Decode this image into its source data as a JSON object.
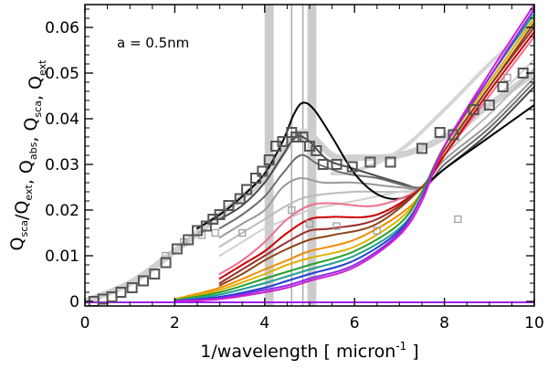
{
  "chart_data": {
    "type": "line",
    "title": "",
    "annotation": "a = 0.5nm",
    "xlabel": "1/wavelength [ micron",
    "xlabel_sup": "-1",
    "xlabel_end": " ]",
    "ylabel_parts": [
      {
        "base": "Q",
        "sub": "sca"
      },
      {
        "text": "/"
      },
      {
        "base": "Q",
        "sub": "ext"
      },
      {
        "text": ",  "
      },
      {
        "base": "Q",
        "sub": "abs"
      },
      {
        "text": ",  "
      },
      {
        "base": "Q",
        "sub": "sca"
      },
      {
        "text": ",  "
      },
      {
        "base": "Q",
        "sub": "ext"
      }
    ],
    "xlim": [
      0,
      10
    ],
    "ylim": [
      -0.001,
      0.065
    ],
    "xticks": [
      0,
      2,
      4,
      6,
      8,
      10
    ],
    "xtick_labels": [
      "0",
      "2",
      "4",
      "6",
      "8",
      "10"
    ],
    "yticks": [
      0,
      0.01,
      0.02,
      0.03,
      0.04,
      0.05,
      0.06
    ],
    "ytick_labels": [
      "0",
      "0.01",
      "0.02",
      "0.03",
      "0.04",
      "0.05",
      "0.06"
    ],
    "vertical_bands": [
      {
        "x": 4.1,
        "width": 0.2,
        "color": "#cccccc"
      },
      {
        "x": 5.05,
        "width": 0.2,
        "color": "#cccccc"
      }
    ],
    "vertical_lines": [
      {
        "x": 4.6,
        "color": "#aaaaaa"
      },
      {
        "x": 4.85,
        "color": "#aaaaaa"
      }
    ],
    "series": [
      {
        "name": "ext-fit-band",
        "color": "#d0d0d0",
        "width": 7,
        "points": [
          [
            0,
            0.0
          ],
          [
            1,
            0.004
          ],
          [
            2,
            0.011
          ],
          [
            3,
            0.019
          ],
          [
            4,
            0.027
          ],
          [
            4.8,
            0.037
          ],
          [
            5.5,
            0.032
          ],
          [
            6,
            0.0315
          ],
          [
            7,
            0.032
          ],
          [
            8,
            0.036
          ],
          [
            9,
            0.043
          ],
          [
            10,
            0.05
          ]
        ]
      },
      {
        "name": "upper-fit",
        "color": "#d6d6d6",
        "width": 4,
        "points": [
          [
            5.5,
            0.028
          ],
          [
            6,
            0.0285
          ],
          [
            7,
            0.033
          ],
          [
            8,
            0.042
          ],
          [
            9,
            0.052
          ],
          [
            10,
            0.061
          ]
        ]
      },
      {
        "name": "gray-1",
        "color": "#4a4a4a",
        "width": 2,
        "points": [
          [
            3,
            0.018
          ],
          [
            3.5,
            0.021
          ],
          [
            4,
            0.026
          ],
          [
            4.4,
            0.032
          ],
          [
            4.7,
            0.036
          ],
          [
            5,
            0.035
          ],
          [
            5.4,
            0.031
          ],
          [
            6,
            0.029
          ],
          [
            7,
            0.026
          ],
          [
            7.5,
            0.025
          ],
          [
            8,
            0.029
          ],
          [
            9,
            0.037
          ],
          [
            10,
            0.047
          ]
        ]
      },
      {
        "name": "gray-2",
        "color": "#6e6e6e",
        "width": 2,
        "points": [
          [
            3,
            0.016
          ],
          [
            3.5,
            0.019
          ],
          [
            4,
            0.023
          ],
          [
            4.4,
            0.028
          ],
          [
            4.8,
            0.032
          ],
          [
            5.2,
            0.03
          ],
          [
            5.8,
            0.028
          ],
          [
            6.5,
            0.027
          ],
          [
            7.5,
            0.025
          ],
          [
            8,
            0.03
          ],
          [
            9,
            0.038
          ],
          [
            10,
            0.048
          ]
        ]
      },
      {
        "name": "gray-3",
        "color": "#999999",
        "width": 2,
        "points": [
          [
            3,
            0.014
          ],
          [
            3.5,
            0.017
          ],
          [
            4,
            0.02
          ],
          [
            4.4,
            0.025
          ],
          [
            4.8,
            0.027
          ],
          [
            5.3,
            0.026
          ],
          [
            6,
            0.026
          ],
          [
            7,
            0.025
          ],
          [
            7.5,
            0.025
          ],
          [
            8,
            0.031
          ],
          [
            9,
            0.039
          ],
          [
            10,
            0.049
          ]
        ]
      },
      {
        "name": "gray-4",
        "color": "#bbbbbb",
        "width": 2,
        "points": [
          [
            3,
            0.012
          ],
          [
            3.5,
            0.015
          ],
          [
            4,
            0.018
          ],
          [
            4.5,
            0.021
          ],
          [
            5,
            0.023
          ],
          [
            6,
            0.024
          ],
          [
            7,
            0.024
          ],
          [
            7.5,
            0.025
          ],
          [
            8,
            0.032
          ],
          [
            9,
            0.041
          ],
          [
            10,
            0.051
          ]
        ]
      },
      {
        "name": "gray-5",
        "color": "#d0d0d0",
        "width": 2,
        "points": [
          [
            3,
            0.01
          ],
          [
            3.5,
            0.013
          ],
          [
            4,
            0.016
          ],
          [
            4.5,
            0.018
          ],
          [
            5,
            0.02
          ],
          [
            6,
            0.022
          ],
          [
            7,
            0.024
          ],
          [
            7.5,
            0.025
          ],
          [
            8,
            0.033
          ],
          [
            9,
            0.043
          ],
          [
            10,
            0.053
          ]
        ]
      },
      {
        "name": "black",
        "color": "#000000",
        "width": 2,
        "points": [
          [
            2.5,
            0.016
          ],
          [
            3,
            0.019
          ],
          [
            3.5,
            0.023
          ],
          [
            4,
            0.028
          ],
          [
            4.4,
            0.035
          ],
          [
            4.65,
            0.041
          ],
          [
            4.85,
            0.0435
          ],
          [
            5.1,
            0.042
          ],
          [
            5.5,
            0.036
          ],
          [
            6,
            0.028
          ],
          [
            6.5,
            0.0235
          ],
          [
            7,
            0.0225
          ],
          [
            7.5,
            0.025
          ],
          [
            8,
            0.029
          ],
          [
            9,
            0.036
          ],
          [
            10,
            0.043
          ]
        ]
      },
      {
        "name": "pink",
        "color": "#ef6f8f",
        "width": 2,
        "points": [
          [
            3,
            0.006
          ],
          [
            3.5,
            0.009
          ],
          [
            4,
            0.013
          ],
          [
            4.5,
            0.018
          ],
          [
            5,
            0.021
          ],
          [
            5.5,
            0.0215
          ],
          [
            6.5,
            0.021
          ],
          [
            7.5,
            0.025
          ],
          [
            8,
            0.032
          ],
          [
            9,
            0.045
          ],
          [
            10,
            0.058
          ]
        ]
      },
      {
        "name": "red",
        "color": "#cc0000",
        "width": 2,
        "points": [
          [
            3,
            0.005
          ],
          [
            3.5,
            0.008
          ],
          [
            4,
            0.011
          ],
          [
            4.5,
            0.015
          ],
          [
            5,
            0.018
          ],
          [
            5.5,
            0.0185
          ],
          [
            6.5,
            0.019
          ],
          [
            7.5,
            0.025
          ],
          [
            8,
            0.032
          ],
          [
            9,
            0.046
          ],
          [
            10,
            0.059
          ]
        ]
      },
      {
        "name": "darkred",
        "color": "#9b2c2c",
        "width": 2,
        "points": [
          [
            3,
            0.004
          ],
          [
            3.5,
            0.007
          ],
          [
            4,
            0.01
          ],
          [
            4.5,
            0.013
          ],
          [
            5,
            0.0155
          ],
          [
            5.5,
            0.016
          ],
          [
            6.5,
            0.018
          ],
          [
            7.5,
            0.025
          ],
          [
            8,
            0.033
          ],
          [
            9,
            0.047
          ],
          [
            10,
            0.06
          ]
        ]
      },
      {
        "name": "brown",
        "color": "#8b4513",
        "width": 2,
        "points": [
          [
            3,
            0.0035
          ],
          [
            3.5,
            0.006
          ],
          [
            4,
            0.009
          ],
          [
            4.5,
            0.0115
          ],
          [
            5,
            0.0135
          ],
          [
            5.5,
            0.0145
          ],
          [
            6.5,
            0.017
          ],
          [
            7.5,
            0.025
          ],
          [
            8,
            0.033
          ],
          [
            9,
            0.047
          ],
          [
            10,
            0.061
          ]
        ]
      },
      {
        "name": "orange",
        "color": "#f08c00",
        "width": 2,
        "points": [
          [
            2,
            0.0005
          ],
          [
            3,
            0.003
          ],
          [
            4,
            0.007
          ],
          [
            4.5,
            0.009
          ],
          [
            5,
            0.011
          ],
          [
            6,
            0.0135
          ],
          [
            7,
            0.019
          ],
          [
            7.5,
            0.024
          ],
          [
            8,
            0.034
          ],
          [
            9,
            0.048
          ],
          [
            10,
            0.062
          ]
        ]
      },
      {
        "name": "gold",
        "color": "#e0b000",
        "width": 2,
        "points": [
          [
            2,
            0.0004
          ],
          [
            3,
            0.0025
          ],
          [
            4,
            0.006
          ],
          [
            4.5,
            0.008
          ],
          [
            5,
            0.0095
          ],
          [
            6,
            0.012
          ],
          [
            7,
            0.018
          ],
          [
            7.5,
            0.024
          ],
          [
            8,
            0.034
          ],
          [
            9,
            0.048
          ],
          [
            10,
            0.062
          ]
        ]
      },
      {
        "name": "green",
        "color": "#2aa02a",
        "width": 2,
        "points": [
          [
            2,
            0.0003
          ],
          [
            3,
            0.002
          ],
          [
            4,
            0.005
          ],
          [
            4.5,
            0.0065
          ],
          [
            5,
            0.008
          ],
          [
            6,
            0.011
          ],
          [
            7,
            0.017
          ],
          [
            7.5,
            0.024
          ],
          [
            8,
            0.034
          ],
          [
            9,
            0.049
          ],
          [
            10,
            0.063
          ]
        ]
      },
      {
        "name": "teal",
        "color": "#1f9f8f",
        "width": 2,
        "points": [
          [
            2,
            0.0002
          ],
          [
            3,
            0.0015
          ],
          [
            4,
            0.004
          ],
          [
            4.5,
            0.0055
          ],
          [
            5,
            0.007
          ],
          [
            6,
            0.01
          ],
          [
            7,
            0.016
          ],
          [
            7.5,
            0.023
          ],
          [
            8,
            0.034
          ],
          [
            9,
            0.049
          ],
          [
            10,
            0.063
          ]
        ]
      },
      {
        "name": "blue",
        "color": "#1f3fd8",
        "width": 2,
        "points": [
          [
            2,
            0.0001
          ],
          [
            3,
            0.001
          ],
          [
            4,
            0.003
          ],
          [
            4.5,
            0.0045
          ],
          [
            5,
            0.006
          ],
          [
            6,
            0.009
          ],
          [
            7,
            0.0155
          ],
          [
            7.5,
            0.023
          ],
          [
            8,
            0.034
          ],
          [
            9,
            0.049
          ],
          [
            10,
            0.064
          ]
        ]
      },
      {
        "name": "violet",
        "color": "#8a2be2",
        "width": 2,
        "points": [
          [
            2,
            0.0001
          ],
          [
            3,
            0.0007
          ],
          [
            4,
            0.0025
          ],
          [
            4.5,
            0.0035
          ],
          [
            5,
            0.005
          ],
          [
            6,
            0.008
          ],
          [
            7,
            0.015
          ],
          [
            7.5,
            0.023
          ],
          [
            8,
            0.034
          ],
          [
            9,
            0.049
          ],
          [
            10,
            0.064
          ]
        ]
      },
      {
        "name": "magenta",
        "color": "#d020d0",
        "width": 2,
        "points": [
          [
            2,
            0.0
          ],
          [
            3,
            0.0005
          ],
          [
            4,
            0.002
          ],
          [
            4.5,
            0.003
          ],
          [
            5,
            0.0045
          ],
          [
            6,
            0.0075
          ],
          [
            7,
            0.0145
          ],
          [
            7.5,
            0.022
          ],
          [
            8,
            0.034
          ],
          [
            9,
            0.05
          ],
          [
            10,
            0.065
          ]
        ]
      },
      {
        "name": "baseline",
        "color": "#a020f0",
        "width": 2,
        "points": [
          [
            0,
            -0.0002
          ],
          [
            10,
            -0.0002
          ]
        ]
      }
    ],
    "scatter_large": {
      "name": "observed-ext",
      "color": "#555555",
      "points": [
        [
          0.2,
          0.0
        ],
        [
          0.4,
          0.0005
        ],
        [
          0.6,
          0.001
        ],
        [
          0.8,
          0.002
        ],
        [
          1.05,
          0.003
        ],
        [
          1.3,
          0.0045
        ],
        [
          1.55,
          0.006
        ],
        [
          1.8,
          0.0085
        ],
        [
          2.05,
          0.0115
        ],
        [
          2.3,
          0.0135
        ],
        [
          2.5,
          0.0155
        ],
        [
          2.7,
          0.0165
        ],
        [
          2.85,
          0.018
        ],
        [
          3.0,
          0.019
        ],
        [
          3.2,
          0.021
        ],
        [
          3.45,
          0.0225
        ],
        [
          3.6,
          0.0245
        ],
        [
          3.8,
          0.027
        ],
        [
          3.95,
          0.0285
        ],
        [
          4.1,
          0.031
        ],
        [
          4.25,
          0.034
        ],
        [
          4.4,
          0.035
        ],
        [
          4.6,
          0.037
        ],
        [
          4.7,
          0.036
        ],
        [
          4.85,
          0.036
        ],
        [
          5.0,
          0.034
        ],
        [
          5.15,
          0.033
        ],
        [
          5.3,
          0.03
        ],
        [
          5.6,
          0.03
        ],
        [
          5.95,
          0.0295
        ],
        [
          6.35,
          0.0305
        ],
        [
          6.8,
          0.0305
        ],
        [
          7.5,
          0.0335
        ],
        [
          7.9,
          0.037
        ],
        [
          8.2,
          0.0365
        ],
        [
          8.65,
          0.042
        ],
        [
          9.0,
          0.043
        ],
        [
          9.3,
          0.047
        ],
        [
          9.75,
          0.05
        ]
      ]
    },
    "scatter_small": {
      "name": "observed-sca",
      "color": "#a0a0a0",
      "points": [
        [
          1.8,
          0.01
        ],
        [
          2.2,
          0.013
        ],
        [
          2.6,
          0.0145
        ],
        [
          2.9,
          0.015
        ],
        [
          3.5,
          0.015
        ],
        [
          4.6,
          0.02
        ],
        [
          5.0,
          0.017
        ],
        [
          5.6,
          0.0165
        ],
        [
          6.5,
          0.0155
        ],
        [
          8.3,
          0.018
        ],
        [
          9.4,
          0.049
        ]
      ]
    }
  }
}
